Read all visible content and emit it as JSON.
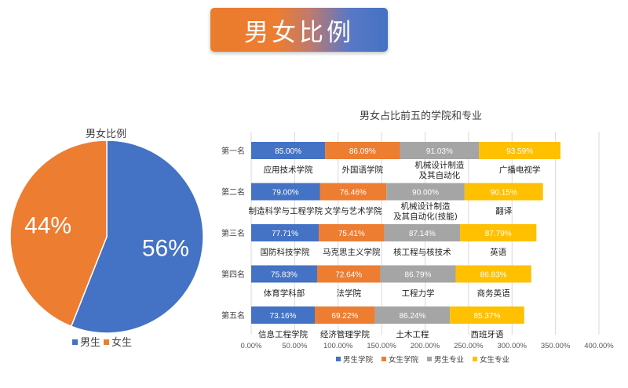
{
  "banner": {
    "title": "男女比例"
  },
  "colors": {
    "male_college": "#4472c4",
    "female_college": "#ed7d31",
    "male_major": "#a5a5a5",
    "female_major": "#ffc000"
  },
  "chart_data": [
    {
      "type": "pie",
      "title": "男女比例",
      "slices": [
        {
          "name": "男生",
          "value": 56,
          "label": "56%",
          "color": "#4472c4"
        },
        {
          "name": "女生",
          "value": 44,
          "label": "44%",
          "color": "#ed7d31"
        }
      ],
      "legend": [
        "男生",
        "女生"
      ]
    },
    {
      "type": "bar",
      "stacked": true,
      "orientation": "horizontal",
      "title": "男女占比前五的学院和专业",
      "categories": [
        "第一名",
        "第二名",
        "第三名",
        "第四名",
        "第五名"
      ],
      "xlim": [
        0,
        400
      ],
      "xticks": [
        "0.00%",
        "50.00%",
        "100.00%",
        "150.00%",
        "200.00%",
        "250.00%",
        "300.00%",
        "350.00%",
        "400.00%"
      ],
      "series": [
        {
          "name": "男生学院",
          "color": "#4472c4",
          "values": [
            85.0,
            79.0,
            77.71,
            75.83,
            73.16
          ],
          "labels": [
            "85.00%",
            "79.00%",
            "77.71%",
            "75.83%",
            "73.16%"
          ],
          "names": [
            "应用技术学院",
            "制造科学与工程学院",
            "国防科技学院",
            "体育学科部",
            "信息工程学院"
          ]
        },
        {
          "name": "女生学院",
          "color": "#ed7d31",
          "values": [
            86.09,
            76.46,
            75.41,
            72.64,
            69.22
          ],
          "labels": [
            "86.09%",
            "76.46%",
            "75.41%",
            "72.64%",
            "69.22%"
          ],
          "names": [
            "外国语学院",
            "文学与艺术学院",
            "马克思主义学院",
            "法学院",
            "经济管理学院"
          ]
        },
        {
          "name": "男生专业",
          "color": "#a5a5a5",
          "values": [
            91.03,
            90.0,
            87.14,
            86.79,
            86.24
          ],
          "labels": [
            "91.03%",
            "90.00%",
            "87.14%",
            "86.79%",
            "86.24%"
          ],
          "names": [
            "机械设计制造\n及其自动化",
            "机械设计制造\n及其自动化(技能)",
            "核工程与核技术",
            "工程力学",
            "土木工程"
          ]
        },
        {
          "name": "女生专业",
          "color": "#ffc000",
          "values": [
            93.59,
            90.15,
            87.79,
            86.83,
            85.37
          ],
          "labels": [
            "93.59%",
            "90.15%",
            "87.79%",
            "86.83%",
            "85.37%"
          ],
          "names": [
            "广播电视学",
            "翻译",
            "英语",
            "商务英语",
            "西班牙语"
          ]
        }
      ],
      "legend": [
        "男生学院",
        "女生学院",
        "男生专业",
        "女生专业"
      ],
      "legend_position": "bottom"
    }
  ]
}
